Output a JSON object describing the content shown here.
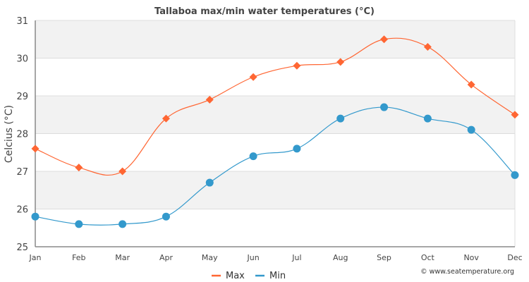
{
  "chart_data": {
    "type": "line",
    "title": "Tallaboa max/min water temperatures (°C)",
    "xlabel": "",
    "ylabel": "Celcius (°C)",
    "categories": [
      "Jan",
      "Feb",
      "Mar",
      "Apr",
      "May",
      "Jun",
      "Jul",
      "Aug",
      "Sep",
      "Oct",
      "Nov",
      "Dec"
    ],
    "ylim": [
      25,
      31
    ],
    "yticks": [
      "25",
      "26",
      "27",
      "28",
      "29",
      "30",
      "31"
    ],
    "grid": true,
    "legend_position": "bottom-center",
    "series": [
      {
        "name": "Max",
        "color": "#ff6633",
        "marker": "diamond",
        "values": [
          27.6,
          27.1,
          27.0,
          28.4,
          28.9,
          29.5,
          29.8,
          29.9,
          30.5,
          30.3,
          29.3,
          28.5
        ]
      },
      {
        "name": "Min",
        "color": "#3399cc",
        "marker": "circle",
        "values": [
          25.8,
          25.6,
          25.6,
          25.8,
          26.7,
          27.4,
          27.6,
          28.4,
          28.7,
          28.4,
          28.1,
          26.9
        ]
      }
    ],
    "band_color": "#f2f2f2",
    "grid_color": "#dddddd",
    "credit": "© www.seatemperature.org"
  }
}
